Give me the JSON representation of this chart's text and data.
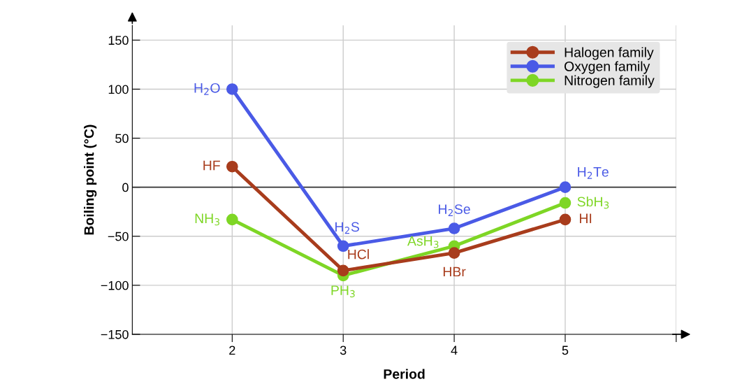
{
  "chart_data": {
    "type": "line",
    "xlabel": "Period",
    "ylabel": "Boiling point (°C)",
    "x": [
      2,
      3,
      4,
      5
    ],
    "series": [
      {
        "name": "Halogen family",
        "color": "#a83c1c",
        "values": [
          21,
          -85,
          -67,
          -33
        ]
      },
      {
        "name": "Oxygen family",
        "color": "#4a5ae6",
        "values": [
          100,
          -60,
          -42,
          0
        ]
      },
      {
        "name": "Nitrogen family",
        "color": "#7ed625",
        "values": [
          -33,
          -90,
          -60,
          -16
        ]
      }
    ],
    "xlim": [
      1.1,
      6
    ],
    "xticks": [
      2,
      3,
      4,
      5,
      {
        "value": 6,
        "label": null
      }
    ],
    "ylim": [
      -150,
      165
    ],
    "yticks": [
      {
        "value": -150,
        "label": "−150"
      },
      {
        "value": -100,
        "label": "−100"
      },
      {
        "value": -50,
        "label": "−50"
      },
      0,
      50,
      100,
      150
    ],
    "ref_lines": [
      {
        "axis": "y",
        "value": 0,
        "color": "#333333"
      }
    ],
    "grid": true,
    "legend": "top right",
    "marker": "circle",
    "line_style": "solid",
    "annotations": [
      {
        "text": "HF",
        "x": 2,
        "y": 21
      },
      {
        "text": "HCl",
        "x": 3,
        "y": -85
      },
      {
        "text": "HBr",
        "x": 4,
        "y": -67
      },
      {
        "text": "HI",
        "x": 5,
        "y": -33
      },
      {
        "text": "H$_{2}$O",
        "x": 2,
        "y": 100
      },
      {
        "text": "H$_{2}$S",
        "x": 3,
        "y": -60
      },
      {
        "text": "H$_{2}$Se",
        "x": 4,
        "y": -42
      },
      {
        "text": "H$_{2}$Te",
        "x": 5,
        "y": 0
      },
      {
        "text": "NH$_{3}$",
        "x": 2,
        "y": -33
      },
      {
        "text": "PH$_{3}$",
        "x": 3,
        "y": -90
      },
      {
        "text": "AsH$_{3}$",
        "x": 4,
        "y": -60
      },
      {
        "text": "SbH$_{3}$",
        "x": 5,
        "y": -16
      }
    ]
  }
}
